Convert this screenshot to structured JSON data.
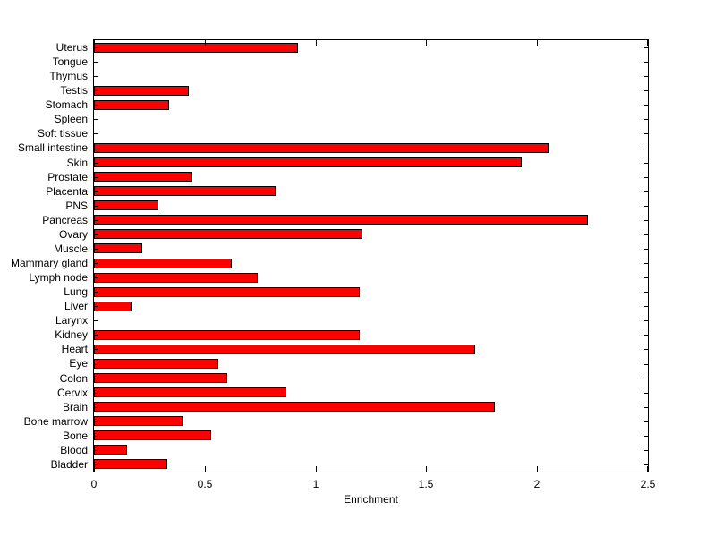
{
  "chart_data": {
    "type": "bar",
    "orientation": "horizontal",
    "title": "",
    "xlabel": "Enrichment",
    "ylabel": "",
    "xlim": [
      0,
      2.5
    ],
    "x_ticks": [
      0,
      0.5,
      1,
      1.5,
      2,
      2.5
    ],
    "x_tick_labels": [
      "0",
      "0.5",
      "1",
      "1.5",
      "2",
      "2.5"
    ],
    "grid": false,
    "legend": "none",
    "bar_color": "#FF0000",
    "bar_edge_color": "#000000",
    "background_color": "#FFFFFF",
    "axis_color": "#000000",
    "categories_order": "top-to-bottom",
    "categories": [
      "Uterus",
      "Tongue",
      "Thymus",
      "Testis",
      "Stomach",
      "Spleen",
      "Soft tissue",
      "Small intestine",
      "Skin",
      "Prostate",
      "Placenta",
      "PNS",
      "Pancreas",
      "Ovary",
      "Muscle",
      "Mammary gland",
      "Lymph node",
      "Lung",
      "Liver",
      "Larynx",
      "Kidney",
      "Heart",
      "Eye",
      "Colon",
      "Cervix",
      "Brain",
      "Bone marrow",
      "Bone",
      "Blood",
      "Bladder"
    ],
    "values": [
      0.92,
      0,
      0,
      0.43,
      0.34,
      0,
      0,
      2.05,
      1.93,
      0.44,
      0.82,
      0.29,
      2.23,
      1.21,
      0.22,
      0.62,
      0.74,
      1.2,
      0.17,
      0,
      1.2,
      1.72,
      0.56,
      0.6,
      0.87,
      1.81,
      0.4,
      0.53,
      0.15,
      0.33
    ]
  }
}
